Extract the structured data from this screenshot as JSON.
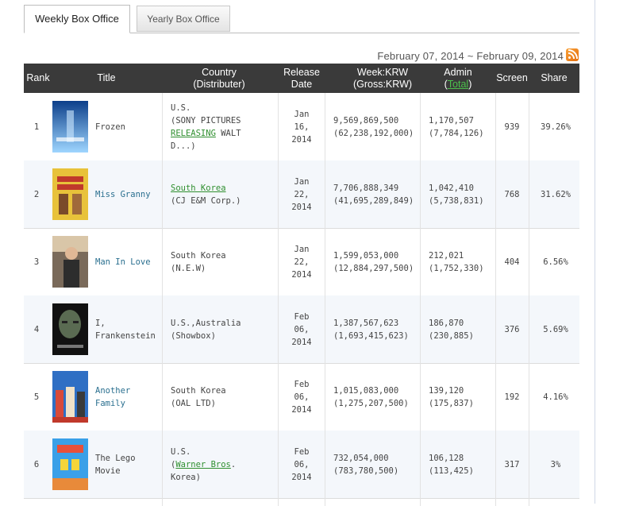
{
  "tabs": [
    {
      "label": "Weekly Box Office",
      "active": true
    },
    {
      "label": "Yearly Box Office",
      "active": false
    }
  ],
  "date_range": "February 07, 2014 ~ February 09, 2014",
  "rss_icon": "rss-feed-icon",
  "columns": {
    "rank": "Rank",
    "title": "Title",
    "country_line1": "Country",
    "country_line2": "(Distributer)",
    "release_line1": "Release",
    "release_line2": "Date",
    "week_line1": "Week:KRW",
    "week_line2": "(Gross:KRW)",
    "admin_line1": "Admin",
    "admin_open": "(",
    "admin_total": "Total",
    "admin_close": ")",
    "screen": "Screen",
    "share": "Share"
  },
  "rows": [
    {
      "rank": "1",
      "title": "Frozen",
      "title_link": false,
      "country_a": "U.S.",
      "country_b": "(SONY PICTURES",
      "country_c": "RELEASING",
      "country_d": " WALT",
      "country_e": "D...)",
      "release_1": "Jan",
      "release_2": "16,",
      "release_3": "2014",
      "week": "9,569,869,500",
      "gross": "(62,238,192,000)",
      "admin": "1,170,507",
      "admin_total": "(7,784,126)",
      "screen": "939",
      "share": "39.26%",
      "poster_colors": [
        "#0c3f8a",
        "#9fd6ff"
      ]
    },
    {
      "rank": "2",
      "title": "Miss Granny",
      "title_link": true,
      "country_link": "South Korea",
      "country_sub": "(CJ E&M Corp.)",
      "release_1": "Jan",
      "release_2": "22,",
      "release_3": "2014",
      "week": "7,706,888,349",
      "gross": "(41,695,289,849)",
      "admin": "1,042,410",
      "admin_total": "(5,738,831)",
      "screen": "768",
      "share": "31.62%",
      "poster_colors": [
        "#e8c23a",
        "#c0392b"
      ]
    },
    {
      "rank": "3",
      "title": "Man In Love",
      "title_link": true,
      "country_main": "South Korea",
      "country_sub": "(N.E.W)",
      "release_1": "Jan",
      "release_2": "22,",
      "release_3": "2014",
      "week": "1,599,053,000",
      "gross": "(12,884,297,500)",
      "admin": "212,021",
      "admin_total": "(1,752,330)",
      "screen": "404",
      "share": "6.56%",
      "poster_colors": [
        "#7a6a5a",
        "#d9c6a8"
      ]
    },
    {
      "rank": "4",
      "title_1": "I,",
      "title_2": "Frankenstein",
      "title_link": false,
      "country_main": "U.S.,Australia",
      "country_sub": "(Showbox)",
      "release_1": "Feb",
      "release_2": "06,",
      "release_3": "2014",
      "week": "1,387,567,623",
      "gross": "(1,693,415,623)",
      "admin": "186,870",
      "admin_total": "(230,885)",
      "screen": "376",
      "share": "5.69%",
      "poster_colors": [
        "#111111",
        "#5a6b52"
      ]
    },
    {
      "rank": "5",
      "title_1": "Another",
      "title_2": "Family",
      "title_link": true,
      "country_main": "South Korea",
      "country_sub": "(OAL LTD)",
      "release_1": "Feb",
      "release_2": "06,",
      "release_3": "2014",
      "week": "1,015,083,000",
      "gross": "(1,275,207,500)",
      "admin": "139,120",
      "admin_total": "(175,837)",
      "screen": "192",
      "share": "4.16%",
      "poster_colors": [
        "#2f6fc4",
        "#d84a3a"
      ]
    },
    {
      "rank": "6",
      "title_1": "The Lego",
      "title_2": "Movie",
      "title_link": false,
      "country_main": "U.S.",
      "country_open": "(",
      "country_link": "Warner Bros",
      "country_rest": ". Korea)",
      "release_1": "Feb",
      "release_2": "06,",
      "release_3": "2014",
      "week": "732,054,000",
      "gross": "(783,780,500)",
      "admin": "106,128",
      "admin_total": "(113,425)",
      "screen": "317",
      "share": "3%",
      "poster_colors": [
        "#3aa0e8",
        "#e8503a"
      ]
    }
  ]
}
